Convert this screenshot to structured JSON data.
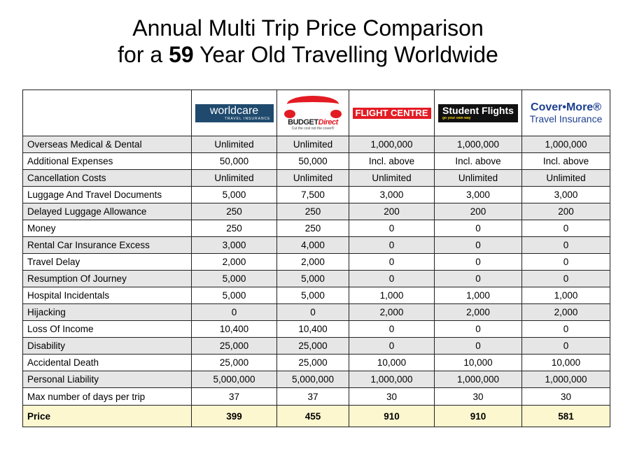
{
  "title": {
    "line1": "Annual Multi Trip Price Comparison",
    "line2_prefix": "for a ",
    "line2_age": "59",
    "line2_suffix": " Year Old Travelling Worldwide"
  },
  "providers": [
    {
      "name": "worldcare",
      "tagline": "TRAVEL INSURANCE",
      "color": "#1f4a6e"
    },
    {
      "name": "BUDGET",
      "name2": "Direct",
      "tagline": "Cut the cost not the cover®",
      "color": "#e31b23"
    },
    {
      "name": "FLIGHT CENTRE",
      "color": "#e31b23"
    },
    {
      "name": "Student Flights",
      "tagline": "go your own way",
      "color": "#111111"
    },
    {
      "name": "Cover•More®",
      "tagline": "Travel Insurance",
      "color": "#1c3f8f"
    }
  ],
  "rows": [
    {
      "label": "Overseas Medical & Dental",
      "values": [
        "Unlimited",
        "Unlimited",
        "1,000,000",
        "1,000,000",
        "1,000,000"
      ]
    },
    {
      "label": "Additional Expenses",
      "values": [
        "50,000",
        "50,000",
        "Incl. above",
        "Incl. above",
        "Incl. above"
      ]
    },
    {
      "label": "Cancellation Costs",
      "values": [
        "Unlimited",
        "Unlimited",
        "Unlimited",
        "Unlimited",
        "Unlimited"
      ]
    },
    {
      "label": "Luggage And Travel Documents",
      "values": [
        "5,000",
        "7,500",
        "3,000",
        "3,000",
        "3,000"
      ]
    },
    {
      "label": "Delayed Luggage Allowance",
      "values": [
        "250",
        "250",
        "200",
        "200",
        "200"
      ]
    },
    {
      "label": "Money",
      "values": [
        "250",
        "250",
        "0",
        "0",
        "0"
      ]
    },
    {
      "label": "Rental Car Insurance Excess",
      "values": [
        "3,000",
        "4,000",
        "0",
        "0",
        "0"
      ]
    },
    {
      "label": "Travel Delay",
      "values": [
        "2,000",
        "2,000",
        "0",
        "0",
        "0"
      ]
    },
    {
      "label": "Resumption Of Journey",
      "values": [
        "5,000",
        "5,000",
        "0",
        "0",
        "0"
      ]
    },
    {
      "label": "Hospital Incidentals",
      "values": [
        "5,000",
        "5,000",
        "1,000",
        "1,000",
        "1,000"
      ]
    },
    {
      "label": "Hijacking",
      "values": [
        "0",
        "0",
        "2,000",
        "2,000",
        "2,000"
      ]
    },
    {
      "label": "Loss Of Income",
      "values": [
        "10,400",
        "10,400",
        "0",
        "0",
        "0"
      ]
    },
    {
      "label": "Disability",
      "values": [
        "25,000",
        "25,000",
        "0",
        "0",
        "0"
      ]
    },
    {
      "label": "Accidental Death",
      "values": [
        "25,000",
        "25,000",
        "10,000",
        "10,000",
        "10,000"
      ]
    },
    {
      "label": "Personal Liability",
      "values": [
        "5,000,000",
        "5,000,000",
        "1,000,000",
        "1,000,000",
        "1,000,000"
      ]
    },
    {
      "label": "Max number of days per trip",
      "values": [
        "37",
        "37",
        "30",
        "30",
        "30"
      ]
    }
  ],
  "price": {
    "label": "Price",
    "values": [
      "399",
      "455",
      "910",
      "910",
      "581"
    ]
  },
  "colors": {
    "row_shade": "#e6e6e6",
    "price_row": "#fdf7cf"
  }
}
